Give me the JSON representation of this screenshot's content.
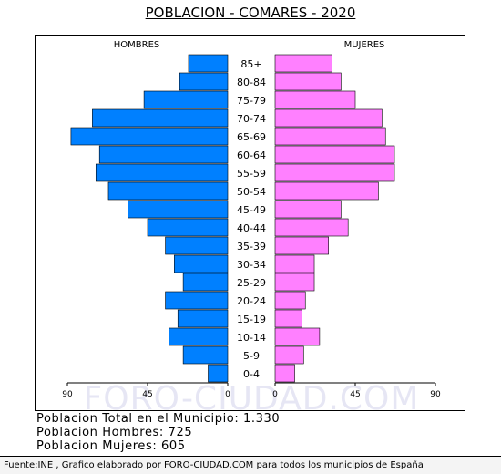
{
  "title": "POBLACION - COMARES - 2020",
  "watermark": "FORO-CIUDAD.COM",
  "stats": {
    "total": "Poblacion Total en el Municipio: 1.330",
    "men": "Poblacion Hombres: 725",
    "women": "Poblacion Mujeres: 605"
  },
  "footer": "Fuente:INE , Grafico elaborado por FORO-CIUDAD.COM para todos los municipios de España",
  "colors": {
    "men": "#0080FF",
    "women": "#FF80FF"
  },
  "chart_data": {
    "type": "bar",
    "orientation": "horizontal-pyramid",
    "left_label": "HOMBRES",
    "right_label": "MUJERES",
    "categories": [
      "85+",
      "80-84",
      "75-79",
      "70-74",
      "65-69",
      "60-64",
      "55-59",
      "50-54",
      "45-49",
      "40-44",
      "35-39",
      "30-34",
      "25-29",
      "20-24",
      "15-19",
      "10-14",
      "5-9",
      "0-4"
    ],
    "series": [
      {
        "name": "HOMBRES",
        "values": [
          22,
          27,
          47,
          76,
          88,
          72,
          74,
          67,
          56,
          45,
          35,
          30,
          25,
          35,
          28,
          33,
          25,
          11
        ]
      },
      {
        "name": "MUJERES",
        "values": [
          32,
          37,
          45,
          60,
          62,
          67,
          67,
          58,
          37,
          41,
          30,
          22,
          22,
          17,
          15,
          25,
          16,
          11
        ]
      }
    ],
    "x_ticks_left": [
      "90",
      "45",
      "0"
    ],
    "x_ticks_right": [
      "0",
      "45",
      "90"
    ],
    "xlim": [
      0,
      90
    ],
    "grid": false
  }
}
